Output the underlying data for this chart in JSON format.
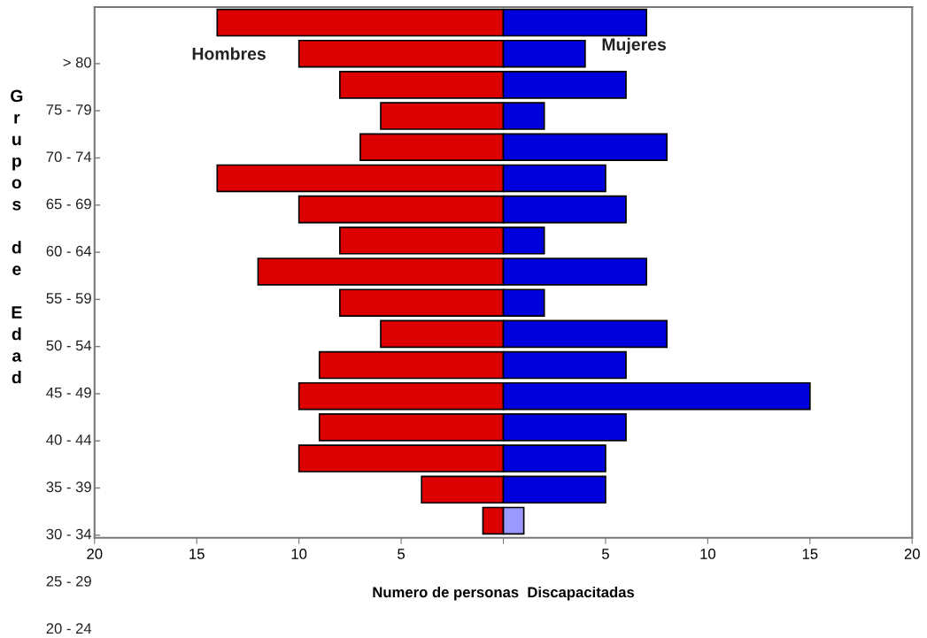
{
  "chart_data": {
    "type": "bar",
    "orientation": "horizontal",
    "stacked": true,
    "xlabel": "Numero de personas  Discapacitadas",
    "ylabel": "Grupos de Edad",
    "categories": [
      null,
      null,
      null,
      null,
      null,
      null,
      null,
      null,
      null,
      null,
      null,
      null,
      null,
      null,
      null,
      null,
      null
    ],
    "series": [
      {
        "name": "Hombres",
        "color": "#dd0000",
        "values": [
          -14,
          -10,
          -8,
          -6,
          -7,
          -14,
          -10,
          -8,
          -12,
          -8,
          -6,
          -9,
          -10,
          -9,
          -10,
          -4,
          -1
        ]
      },
      {
        "name": "Mujeres",
        "color": "#0000dd",
        "colors": [
          null,
          null,
          null,
          null,
          null,
          null,
          null,
          null,
          null,
          null,
          null,
          null,
          null,
          null,
          null,
          null,
          "#9999ff"
        ],
        "values": [
          7,
          4,
          6,
          2,
          8,
          5,
          6,
          2,
          7,
          2,
          8,
          6,
          15,
          6,
          5,
          5,
          1
        ]
      }
    ],
    "xlim": [
      -20,
      20
    ],
    "xticks": [
      {
        "value": -20,
        "label": "20"
      },
      {
        "value": -15,
        "label": "15"
      },
      {
        "value": -10,
        "label": "10"
      },
      {
        "value": -5,
        "label": "5"
      },
      {
        "value": 0,
        "label": null
      },
      5,
      10,
      15,
      20
    ],
    "annotations": [
      "> 80",
      "75 - 79",
      "70 - 74",
      "65 - 69",
      "60 - 64",
      "55 - 59",
      "50 - 54",
      "45 - 49",
      "40 - 44",
      "35 - 39",
      "30 - 34",
      "25 - 29",
      "20 - 24"
    ],
    "grid": false,
    "legend": false
  }
}
